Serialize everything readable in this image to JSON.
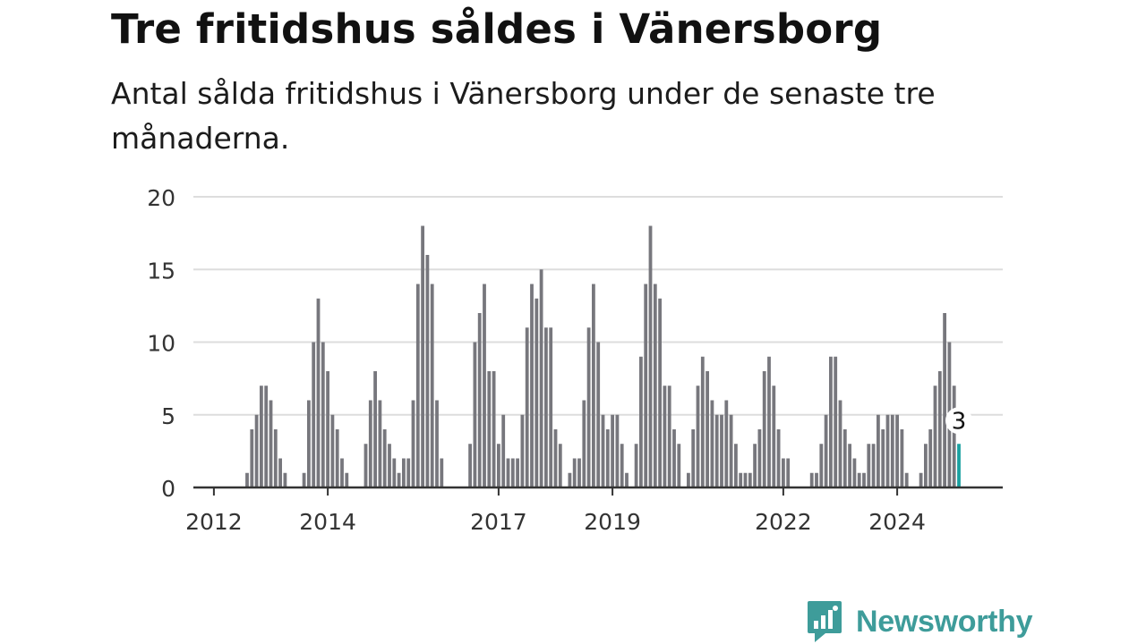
{
  "title": "Tre fritidshus såldes i Vänersborg",
  "subtitle": "Antal sålda fritidshus i Vänersborg under de senaste tre månaderna.",
  "brand": {
    "name": "Newsworthy",
    "logo_icon": "bar-chart-speech-bubble-icon",
    "color": "#3e9c9a"
  },
  "colors": {
    "bar": "#77777d",
    "highlight": "#1aa1a1",
    "grid": "#dddddd",
    "axis": "#333333",
    "text": "#333333"
  },
  "chart_data": {
    "type": "bar",
    "title": "Tre fritidshus såldes i Vänersborg",
    "xlabel": "",
    "ylabel": "",
    "ylim": [
      0,
      20
    ],
    "y_ticks": [
      0,
      5,
      10,
      15,
      20
    ],
    "x_tick_labels": [
      "2012",
      "2014",
      "2017",
      "2019",
      "2022",
      "2024"
    ],
    "grid": true,
    "start_period": "2011-10",
    "granularity": "month",
    "values": [
      0,
      0,
      0,
      0,
      0,
      0,
      0,
      0,
      0,
      0,
      1,
      4,
      5,
      7,
      7,
      6,
      4,
      2,
      1,
      0,
      0,
      0,
      1,
      6,
      10,
      13,
      10,
      8,
      5,
      4,
      2,
      1,
      0,
      0,
      0,
      3,
      6,
      8,
      6,
      4,
      3,
      2,
      1,
      2,
      2,
      6,
      14,
      18,
      16,
      14,
      6,
      2,
      0,
      0,
      0,
      0,
      0,
      3,
      10,
      12,
      14,
      8,
      8,
      3,
      5,
      2,
      2,
      2,
      5,
      11,
      14,
      13,
      15,
      11,
      11,
      4,
      3,
      0,
      1,
      2,
      2,
      6,
      11,
      14,
      10,
      5,
      4,
      5,
      5,
      3,
      1,
      0,
      3,
      9,
      14,
      18,
      14,
      13,
      7,
      7,
      4,
      3,
      0,
      1,
      4,
      7,
      9,
      8,
      6,
      5,
      5,
      6,
      5,
      3,
      1,
      1,
      1,
      3,
      4,
      8,
      9,
      7,
      4,
      2,
      2,
      0,
      0,
      0,
      0,
      1,
      1,
      3,
      5,
      9,
      9,
      6,
      4,
      3,
      2,
      1,
      1,
      3,
      3,
      5,
      4,
      5,
      5,
      5,
      4,
      1,
      0,
      0,
      1,
      3,
      4,
      7,
      8,
      12,
      10,
      7,
      3
    ],
    "annotations": [
      {
        "label": "3",
        "target": "last"
      }
    ]
  }
}
